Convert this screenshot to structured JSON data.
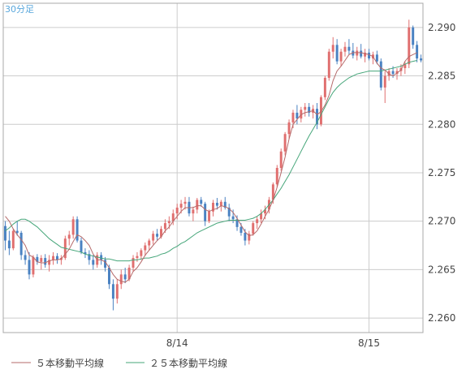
{
  "timeframe_label": "30分足",
  "legend": {
    "ma5_label": "５本移動平均線",
    "ma25_label": "２５本移動平均線"
  },
  "colors": {
    "up": "#e06f6f",
    "down": "#4a82c2",
    "wick": "#999999",
    "ma5": "#b56a6a",
    "ma25": "#46a67a",
    "grid": "#cccccc",
    "frame": "#a8a8a8",
    "label": "#444444",
    "timeframe": "#59a7dc"
  },
  "chart_data": {
    "type": "candlestick",
    "title": "",
    "ylim": [
      2.2585,
      2.2925
    ],
    "y_ticks": [
      "2.260",
      "2.265",
      "2.270",
      "2.275",
      "2.280",
      "2.285",
      "2.290"
    ],
    "x_ticks": [
      {
        "label": "8/14",
        "index": 43
      },
      {
        "label": "8/15",
        "index": 91
      }
    ],
    "grid": true,
    "legend_position": "bottom-left",
    "candles": [
      [
        2.2695,
        2.27,
        2.267,
        2.268
      ],
      [
        2.268,
        2.269,
        2.2665,
        2.2672
      ],
      [
        2.2672,
        2.2692,
        2.267,
        2.269
      ],
      [
        2.269,
        2.27,
        2.2685,
        2.2688
      ],
      [
        2.2688,
        2.269,
        2.266,
        2.2665
      ],
      [
        2.2665,
        2.267,
        2.2655,
        2.266
      ],
      [
        2.266,
        2.2668,
        2.264,
        2.2645
      ],
      [
        2.2645,
        2.2665,
        2.2642,
        2.2663
      ],
      [
        2.2663,
        2.2666,
        2.2655,
        2.2658
      ],
      [
        2.2658,
        2.2665,
        2.265,
        2.2662
      ],
      [
        2.2662,
        2.2666,
        2.2652,
        2.2655
      ],
      [
        2.2655,
        2.2665,
        2.2648,
        2.266
      ],
      [
        2.266,
        2.2668,
        2.2655,
        2.2664
      ],
      [
        2.2664,
        2.2667,
        2.2656,
        2.266
      ],
      [
        2.266,
        2.2665,
        2.2655,
        2.2662
      ],
      [
        2.2662,
        2.2685,
        2.266,
        2.2682
      ],
      [
        2.2682,
        2.269,
        2.2675,
        2.2686
      ],
      [
        2.2686,
        2.2705,
        2.2682,
        2.2702
      ],
      [
        2.2702,
        2.2705,
        2.2678,
        2.268
      ],
      [
        2.268,
        2.2683,
        2.2666,
        2.2668
      ],
      [
        2.2668,
        2.2672,
        2.2662,
        2.2666
      ],
      [
        2.2666,
        2.267,
        2.2655,
        2.266
      ],
      [
        2.266,
        2.2665,
        2.265,
        2.2655
      ],
      [
        2.2655,
        2.2668,
        2.2652,
        2.2665
      ],
      [
        2.2665,
        2.2668,
        2.2655,
        2.266
      ],
      [
        2.266,
        2.2663,
        2.2648,
        2.2652
      ],
      [
        2.2652,
        2.2655,
        2.263,
        2.2635
      ],
      [
        2.2635,
        2.264,
        2.2608,
        2.262
      ],
      [
        2.262,
        2.264,
        2.2615,
        2.2635
      ],
      [
        2.2635,
        2.265,
        2.263,
        2.2645
      ],
      [
        2.2645,
        2.2652,
        2.2636,
        2.264
      ],
      [
        2.264,
        2.2655,
        2.2638,
        2.2652
      ],
      [
        2.2652,
        2.2665,
        2.2648,
        2.2662
      ],
      [
        2.2662,
        2.2668,
        2.2658,
        2.2664
      ],
      [
        2.2664,
        2.2672,
        2.266,
        2.267
      ],
      [
        2.267,
        2.2678,
        2.2664,
        2.2675
      ],
      [
        2.2675,
        2.2682,
        2.267,
        2.268
      ],
      [
        2.268,
        2.269,
        2.2676,
        2.2687
      ],
      [
        2.2687,
        2.2692,
        2.268,
        2.2684
      ],
      [
        2.2684,
        2.2695,
        2.2682,
        2.2692
      ],
      [
        2.2692,
        2.2702,
        2.2688,
        2.2698
      ],
      [
        2.2698,
        2.2705,
        2.2692,
        2.27
      ],
      [
        2.27,
        2.2712,
        2.2696,
        2.2708
      ],
      [
        2.2708,
        2.2718,
        2.2702,
        2.2714
      ],
      [
        2.2714,
        2.2722,
        2.2708,
        2.2718
      ],
      [
        2.2718,
        2.2725,
        2.2712,
        2.272
      ],
      [
        2.272,
        2.2725,
        2.2705,
        2.2708
      ],
      [
        2.2708,
        2.2715,
        2.27,
        2.2712
      ],
      [
        2.2712,
        2.2724,
        2.2708,
        2.2722
      ],
      [
        2.2722,
        2.2725,
        2.2715,
        2.2718
      ],
      [
        2.2718,
        2.272,
        2.2695,
        2.27
      ],
      [
        2.27,
        2.2712,
        2.2698,
        2.271
      ],
      [
        2.271,
        2.2722,
        2.2705,
        2.2719
      ],
      [
        2.2719,
        2.2724,
        2.2712,
        2.2716
      ],
      [
        2.2716,
        2.2722,
        2.271,
        2.272
      ],
      [
        2.272,
        2.2725,
        2.2712,
        2.2714
      ],
      [
        2.2714,
        2.2718,
        2.27,
        2.2705
      ],
      [
        2.2705,
        2.2712,
        2.2698,
        2.2702
      ],
      [
        2.2702,
        2.2706,
        2.269,
        2.2694
      ],
      [
        2.2694,
        2.2698,
        2.2685,
        2.2688
      ],
      [
        2.2688,
        2.2692,
        2.2675,
        2.268
      ],
      [
        2.268,
        2.269,
        2.2676,
        2.2687
      ],
      [
        2.2687,
        2.27,
        2.2685,
        2.2698
      ],
      [
        2.2698,
        2.2705,
        2.2692,
        2.2702
      ],
      [
        2.2702,
        2.2712,
        2.2698,
        2.2708
      ],
      [
        2.2708,
        2.2716,
        2.2702,
        2.2712
      ],
      [
        2.2712,
        2.2725,
        2.2708,
        2.2722
      ],
      [
        2.2722,
        2.274,
        2.2718,
        2.2738
      ],
      [
        2.2738,
        2.2758,
        2.2735,
        2.2755
      ],
      [
        2.2755,
        2.2775,
        2.2752,
        2.2772
      ],
      [
        2.2772,
        2.2792,
        2.2768,
        2.279
      ],
      [
        2.279,
        2.2805,
        2.2785,
        2.2802
      ],
      [
        2.2802,
        2.2815,
        2.2796,
        2.2812
      ],
      [
        2.2812,
        2.282,
        2.28,
        2.2806
      ],
      [
        2.2806,
        2.2818,
        2.2802,
        2.2815
      ],
      [
        2.2815,
        2.2822,
        2.2808,
        2.2818
      ],
      [
        2.2818,
        2.2822,
        2.2808,
        2.2812
      ],
      [
        2.2812,
        2.282,
        2.2806,
        2.2816
      ],
      [
        2.2816,
        2.2822,
        2.2795,
        2.28
      ],
      [
        2.28,
        2.283,
        2.2798,
        2.2828
      ],
      [
        2.2828,
        2.285,
        2.2825,
        2.2848
      ],
      [
        2.2848,
        2.2878,
        2.2845,
        2.2875
      ],
      [
        2.2875,
        2.289,
        2.2868,
        2.2882
      ],
      [
        2.2882,
        2.2888,
        2.2862,
        2.2865
      ],
      [
        2.2865,
        2.2878,
        2.286,
        2.2875
      ],
      [
        2.2875,
        2.2885,
        2.287,
        2.288
      ],
      [
        2.288,
        2.2888,
        2.2872,
        2.2876
      ],
      [
        2.2876,
        2.2884,
        2.2868,
        2.2871
      ],
      [
        2.2871,
        2.288,
        2.2866,
        2.2876
      ],
      [
        2.2876,
        2.2883,
        2.2868,
        2.287
      ],
      [
        2.287,
        2.2878,
        2.2864,
        2.2874
      ],
      [
        2.2874,
        2.2878,
        2.2866,
        2.2868
      ],
      [
        2.2868,
        2.2875,
        2.2862,
        2.2872
      ],
      [
        2.2872,
        2.2876,
        2.2862,
        2.2865
      ],
      [
        2.2865,
        2.2868,
        2.2835,
        2.2838
      ],
      [
        2.2838,
        2.2855,
        2.2822,
        2.285
      ],
      [
        2.285,
        2.2858,
        2.2845,
        2.2855
      ],
      [
        2.2855,
        2.286,
        2.2848,
        2.2852
      ],
      [
        2.2852,
        2.2858,
        2.2846,
        2.2855
      ],
      [
        2.2855,
        2.2862,
        2.285,
        2.2858
      ],
      [
        2.2858,
        2.2865,
        2.2852,
        2.2862
      ],
      [
        2.2862,
        2.2908,
        2.2858,
        2.29
      ],
      [
        2.29,
        2.2902,
        2.2878,
        2.2882
      ],
      [
        2.2882,
        2.2886,
        2.2864,
        2.2868
      ],
      [
        2.2868,
        2.2872,
        2.2864,
        2.2866
      ]
    ],
    "ma5": [
      2.2705,
      2.27,
      2.2692,
      2.2686,
      2.2681,
      2.2675,
      2.2665,
      2.2663,
      2.2658,
      2.2657,
      2.2657,
      2.2659,
      2.266,
      2.266,
      2.2661,
      2.2666,
      2.2671,
      2.2679,
      2.2686,
      2.2684,
      2.268,
      2.2675,
      2.2666,
      2.266,
      2.266,
      2.2658,
      2.2652,
      2.2645,
      2.264,
      2.2638,
      2.2637,
      2.264,
      2.2648,
      2.2652,
      2.2658,
      2.2665,
      2.267,
      2.2675,
      2.268,
      2.2684,
      2.269,
      2.2694,
      2.27,
      2.2705,
      2.271,
      2.2714,
      2.2714,
      2.2714,
      2.2716,
      2.2716,
      2.2712,
      2.271,
      2.2712,
      2.2713,
      2.2716,
      2.2715,
      2.2713,
      2.2709,
      2.2703,
      2.2696,
      2.2689,
      2.2685,
      2.2686,
      2.269,
      2.2697,
      2.2705,
      2.2712,
      2.2722,
      2.2735,
      2.275,
      2.2766,
      2.2785,
      2.28,
      2.2805,
      2.281,
      2.2812,
      2.2813,
      2.2814,
      2.281,
      2.2813,
      2.282,
      2.283,
      2.2845,
      2.2855,
      2.286,
      2.2866,
      2.2872,
      2.2874,
      2.2874,
      2.2874,
      2.2873,
      2.2872,
      2.287,
      2.2863,
      2.2858,
      2.2856,
      2.2852,
      2.285,
      2.2853,
      2.2856,
      2.2865,
      2.287,
      2.2872,
      2.2874
    ],
    "ma25": [
      2.269,
      2.2693,
      2.2697,
      2.27,
      2.2702,
      2.2702,
      2.27,
      2.2697,
      2.2694,
      2.269,
      2.2686,
      2.2682,
      2.2679,
      2.2676,
      2.2673,
      2.2672,
      2.2671,
      2.267,
      2.2669,
      2.2668,
      2.2666,
      2.2665,
      2.2664,
      2.2663,
      2.2662,
      2.2661,
      2.2661,
      2.266,
      2.2659,
      2.2659,
      2.2659,
      2.2659,
      2.266,
      2.266,
      2.2661,
      2.2662,
      2.2662,
      2.2663,
      2.2664,
      2.2666,
      2.2667,
      2.2669,
      2.2672,
      2.2674,
      2.2677,
      2.2679,
      2.2682,
      2.2685,
      2.2688,
      2.269,
      2.2692,
      2.2694,
      2.2696,
      2.2698,
      2.2699,
      2.27,
      2.2701,
      2.2701,
      2.2701,
      2.2701,
      2.2701,
      2.2702,
      2.2703,
      2.2705,
      2.2708,
      2.2712,
      2.2717,
      2.2722,
      2.2728,
      2.2734,
      2.2741,
      2.2748,
      2.2756,
      2.2764,
      2.2772,
      2.278,
      2.2788,
      2.2795,
      2.2802,
      2.281,
      2.2818,
      2.2826,
      2.2833,
      2.2838,
      2.2842,
      2.2845,
      2.2848,
      2.285,
      2.2852,
      2.2853,
      2.2854,
      2.2855,
      2.2855,
      2.2855,
      2.2855,
      2.2856,
      2.2857,
      2.2858,
      2.2859,
      2.286,
      2.2862,
      2.2864,
      2.2865,
      2.2866
    ]
  }
}
